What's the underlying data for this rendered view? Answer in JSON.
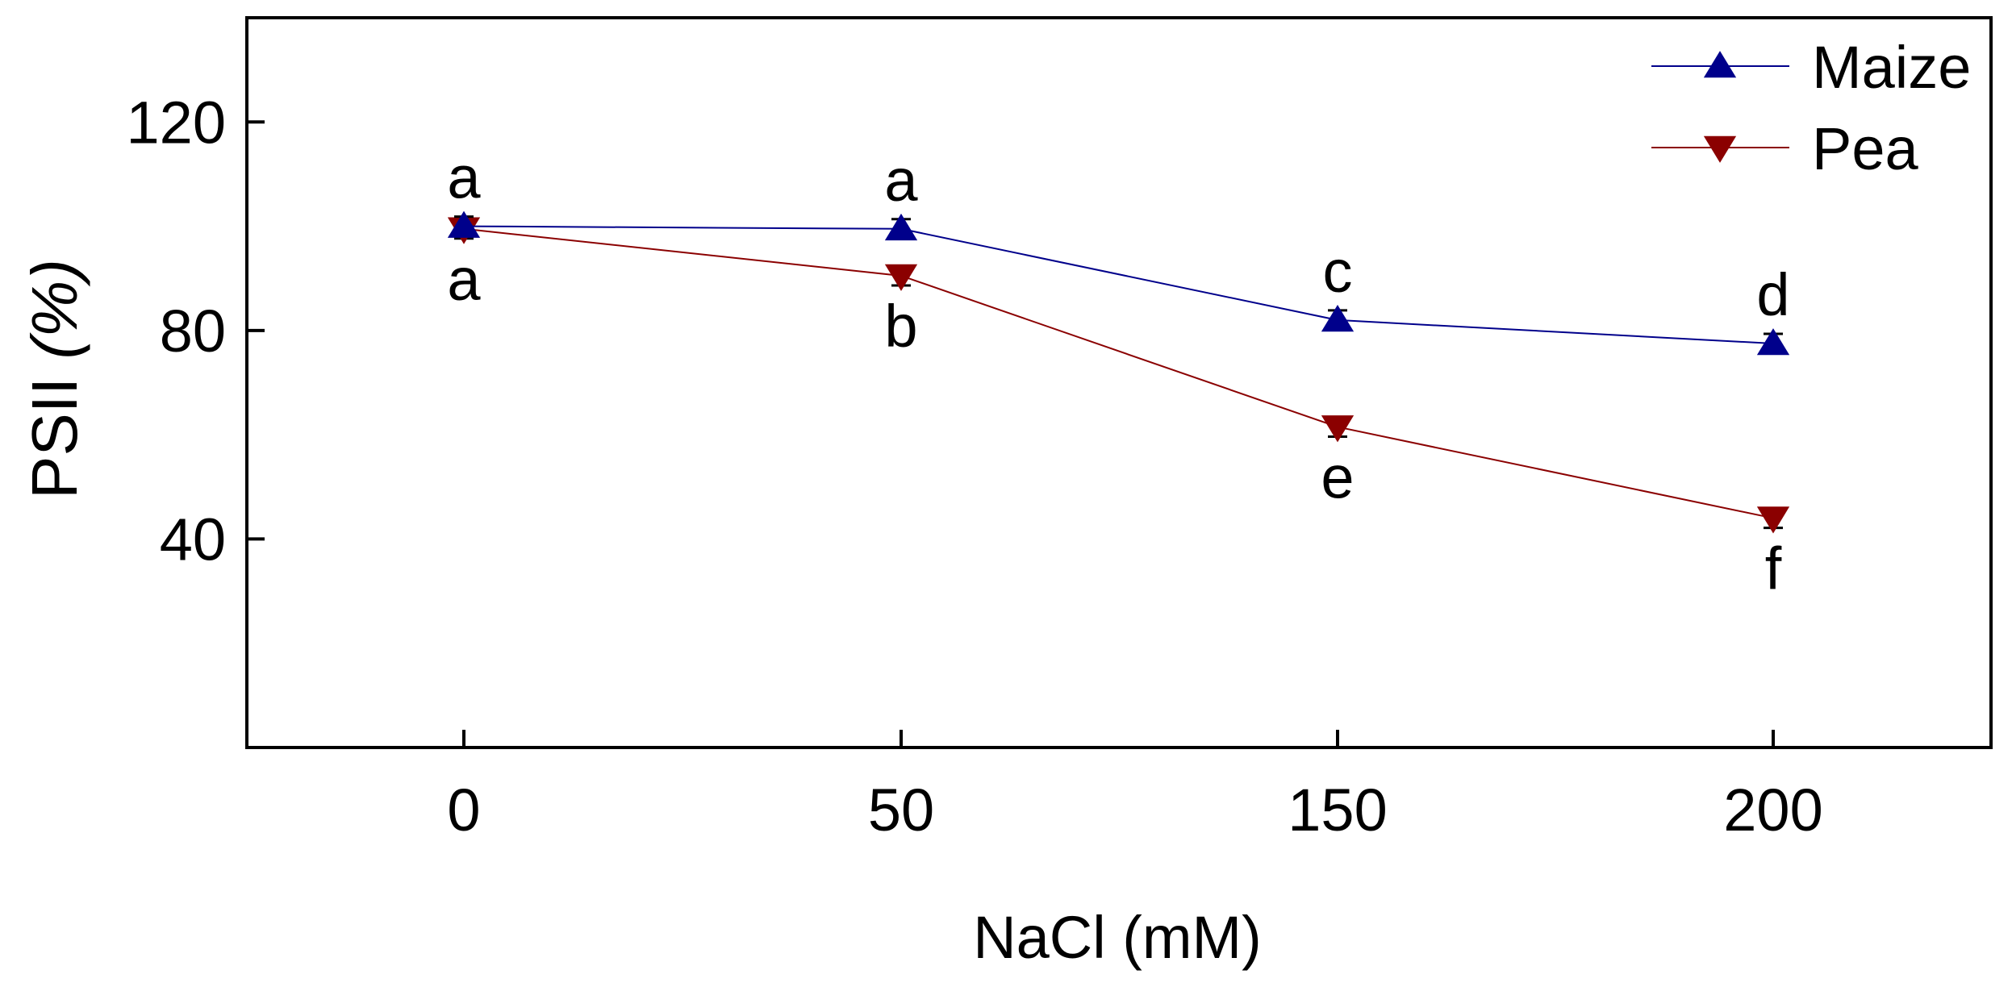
{
  "chart_data": {
    "type": "line",
    "title": "",
    "xlabel": "NaCl (mM)",
    "ylabel_main": "PSII ",
    "ylabel_unit": "(%)",
    "categories": [
      "0",
      "50",
      "150",
      "200"
    ],
    "ylim": [
      0,
      140
    ],
    "yticks": [
      40,
      80,
      120
    ],
    "ytick_labels": [
      "40",
      "80",
      "120"
    ],
    "grid": false,
    "legend_position": "top-right",
    "series": [
      {
        "name": "Maize",
        "color": "#00008B",
        "marker": "triangle-up",
        "values": [
          100,
          99.5,
          82,
          77.5
        ],
        "letters": [
          "a",
          "a",
          "c",
          "d"
        ],
        "letter_position": "above"
      },
      {
        "name": "Pea",
        "color": "#8B0000",
        "marker": "triangle-down",
        "values": [
          99.5,
          90.5,
          61.5,
          44
        ],
        "letters": [
          "a",
          "b",
          "e",
          "f"
        ],
        "letter_position": "below"
      }
    ]
  }
}
